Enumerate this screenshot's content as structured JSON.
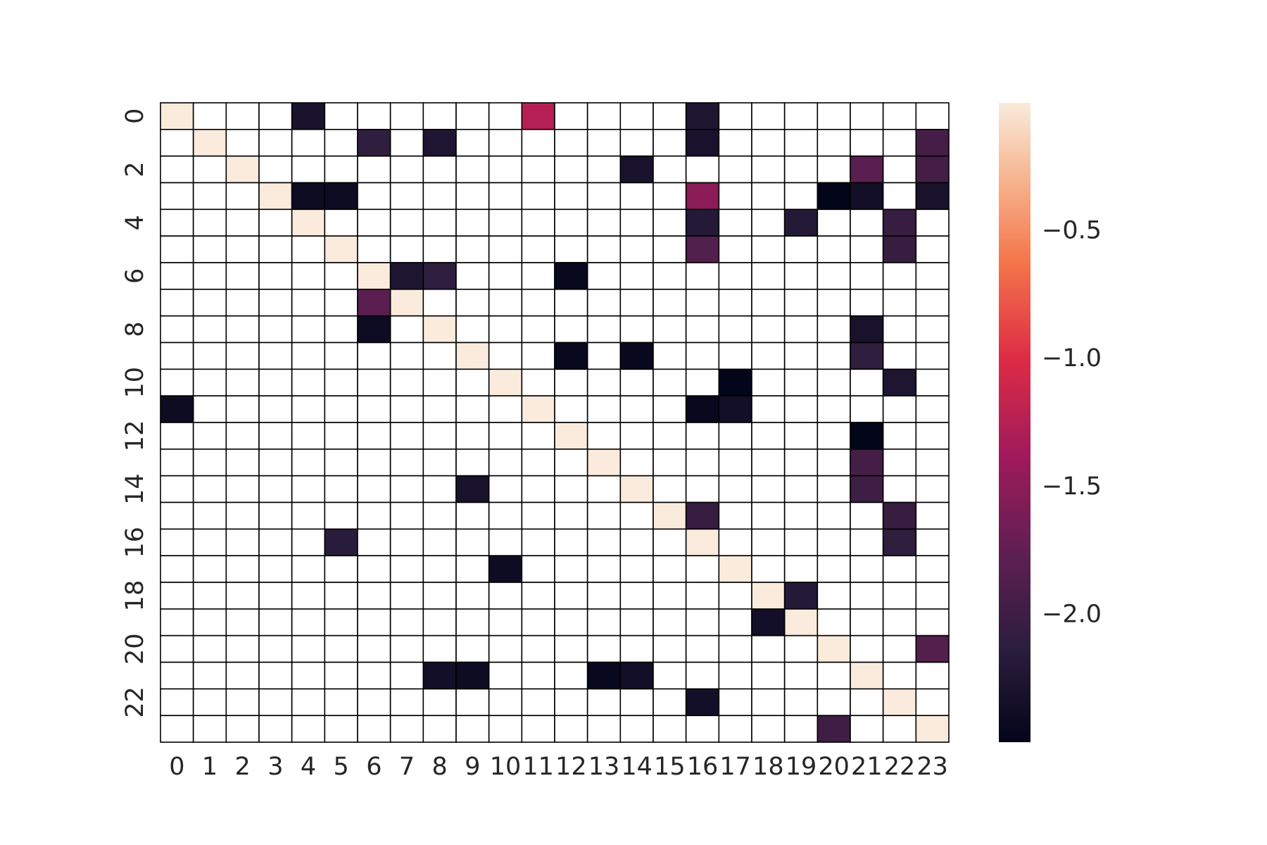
{
  "chart_data": {
    "type": "heatmap",
    "title": "",
    "xlabel": "",
    "ylabel": "",
    "nrows": 24,
    "ncols": 24,
    "x_tick_labels": [
      "0",
      "1",
      "2",
      "3",
      "4",
      "5",
      "6",
      "7",
      "8",
      "9",
      "10",
      "11",
      "12",
      "13",
      "14",
      "15",
      "16",
      "17",
      "18",
      "19",
      "20",
      "21",
      "22",
      "23"
    ],
    "y_tick_labels": [
      "0",
      "2",
      "4",
      "6",
      "8",
      "10",
      "12",
      "14",
      "16",
      "18",
      "20",
      "22"
    ],
    "y_tick_rows": [
      0,
      2,
      4,
      6,
      8,
      10,
      12,
      14,
      16,
      18,
      20,
      22
    ],
    "colorbar": {
      "range": [
        -2.5,
        0.0
      ],
      "tick_values": [
        -0.5,
        -1.0,
        -1.5,
        -2.0
      ],
      "tick_labels": [
        "−0.5",
        "−1.0",
        "−1.5",
        "−2.0"
      ],
      "colormap": "rocket",
      "colormap_stops": [
        {
          "v": 0.0,
          "c": "#03051a"
        },
        {
          "v": 0.15,
          "c": "#2c1e3d"
        },
        {
          "v": 0.3,
          "c": "#611f53"
        },
        {
          "v": 0.45,
          "c": "#a11a5b"
        },
        {
          "v": 0.6,
          "c": "#dd2c45"
        },
        {
          "v": 0.75,
          "c": "#f47549"
        },
        {
          "v": 0.88,
          "c": "#f6b48e"
        },
        {
          "v": 1.0,
          "c": "#faebdd"
        }
      ]
    },
    "missing_color": "#ffffff",
    "grid_line_color": "#000000",
    "cells": [
      {
        "row": 0,
        "col": 0,
        "value": 0.0
      },
      {
        "row": 0,
        "col": 4,
        "value": -2.3
      },
      {
        "row": 0,
        "col": 11,
        "value": -1.25
      },
      {
        "row": 0,
        "col": 16,
        "value": -2.25
      },
      {
        "row": 1,
        "col": 1,
        "value": 0.0
      },
      {
        "row": 1,
        "col": 6,
        "value": -2.1
      },
      {
        "row": 1,
        "col": 8,
        "value": -2.25
      },
      {
        "row": 1,
        "col": 16,
        "value": -2.3
      },
      {
        "row": 1,
        "col": 23,
        "value": -1.95
      },
      {
        "row": 2,
        "col": 2,
        "value": 0.0
      },
      {
        "row": 2,
        "col": 14,
        "value": -2.3
      },
      {
        "row": 2,
        "col": 21,
        "value": -1.8
      },
      {
        "row": 2,
        "col": 23,
        "value": -1.95
      },
      {
        "row": 3,
        "col": 3,
        "value": 0.0
      },
      {
        "row": 3,
        "col": 4,
        "value": -2.4
      },
      {
        "row": 3,
        "col": 5,
        "value": -2.4
      },
      {
        "row": 3,
        "col": 16,
        "value": -1.5
      },
      {
        "row": 3,
        "col": 20,
        "value": -2.5
      },
      {
        "row": 3,
        "col": 21,
        "value": -2.35
      },
      {
        "row": 3,
        "col": 23,
        "value": -2.3
      },
      {
        "row": 4,
        "col": 4,
        "value": 0.0
      },
      {
        "row": 4,
        "col": 16,
        "value": -2.2
      },
      {
        "row": 4,
        "col": 19,
        "value": -2.2
      },
      {
        "row": 4,
        "col": 22,
        "value": -2.05
      },
      {
        "row": 5,
        "col": 5,
        "value": 0.0
      },
      {
        "row": 5,
        "col": 16,
        "value": -1.85
      },
      {
        "row": 5,
        "col": 22,
        "value": -2.05
      },
      {
        "row": 6,
        "col": 6,
        "value": 0.0
      },
      {
        "row": 6,
        "col": 7,
        "value": -2.25
      },
      {
        "row": 6,
        "col": 8,
        "value": -2.1
      },
      {
        "row": 6,
        "col": 12,
        "value": -2.45
      },
      {
        "row": 7,
        "col": 6,
        "value": -1.8
      },
      {
        "row": 7,
        "col": 7,
        "value": 0.0
      },
      {
        "row": 8,
        "col": 6,
        "value": -2.4
      },
      {
        "row": 8,
        "col": 8,
        "value": 0.0
      },
      {
        "row": 8,
        "col": 21,
        "value": -2.3
      },
      {
        "row": 9,
        "col": 9,
        "value": 0.0
      },
      {
        "row": 9,
        "col": 12,
        "value": -2.45
      },
      {
        "row": 9,
        "col": 14,
        "value": -2.45
      },
      {
        "row": 9,
        "col": 21,
        "value": -2.1
      },
      {
        "row": 10,
        "col": 10,
        "value": 0.0
      },
      {
        "row": 10,
        "col": 17,
        "value": -2.5
      },
      {
        "row": 10,
        "col": 22,
        "value": -2.25
      },
      {
        "row": 11,
        "col": 0,
        "value": -2.4
      },
      {
        "row": 11,
        "col": 11,
        "value": 0.0
      },
      {
        "row": 11,
        "col": 16,
        "value": -2.45
      },
      {
        "row": 11,
        "col": 17,
        "value": -2.35
      },
      {
        "row": 12,
        "col": 12,
        "value": 0.0
      },
      {
        "row": 12,
        "col": 21,
        "value": -2.5
      },
      {
        "row": 13,
        "col": 13,
        "value": 0.0
      },
      {
        "row": 13,
        "col": 21,
        "value": -1.95
      },
      {
        "row": 14,
        "col": 9,
        "value": -2.3
      },
      {
        "row": 14,
        "col": 14,
        "value": 0.0
      },
      {
        "row": 14,
        "col": 21,
        "value": -2.0
      },
      {
        "row": 15,
        "col": 15,
        "value": 0.0
      },
      {
        "row": 15,
        "col": 16,
        "value": -2.05
      },
      {
        "row": 15,
        "col": 22,
        "value": -2.05
      },
      {
        "row": 16,
        "col": 5,
        "value": -2.15
      },
      {
        "row": 16,
        "col": 16,
        "value": 0.0
      },
      {
        "row": 16,
        "col": 22,
        "value": -2.1
      },
      {
        "row": 17,
        "col": 10,
        "value": -2.4
      },
      {
        "row": 17,
        "col": 17,
        "value": 0.0
      },
      {
        "row": 18,
        "col": 18,
        "value": 0.0
      },
      {
        "row": 18,
        "col": 19,
        "value": -2.2
      },
      {
        "row": 19,
        "col": 18,
        "value": -2.35
      },
      {
        "row": 19,
        "col": 19,
        "value": 0.0
      },
      {
        "row": 20,
        "col": 20,
        "value": 0.0
      },
      {
        "row": 20,
        "col": 23,
        "value": -1.85
      },
      {
        "row": 21,
        "col": 8,
        "value": -2.35
      },
      {
        "row": 21,
        "col": 9,
        "value": -2.4
      },
      {
        "row": 21,
        "col": 13,
        "value": -2.45
      },
      {
        "row": 21,
        "col": 14,
        "value": -2.35
      },
      {
        "row": 21,
        "col": 21,
        "value": 0.0
      },
      {
        "row": 22,
        "col": 16,
        "value": -2.35
      },
      {
        "row": 22,
        "col": 22,
        "value": 0.0
      },
      {
        "row": 23,
        "col": 20,
        "value": -2.0
      },
      {
        "row": 23,
        "col": 23,
        "value": 0.0
      }
    ]
  }
}
